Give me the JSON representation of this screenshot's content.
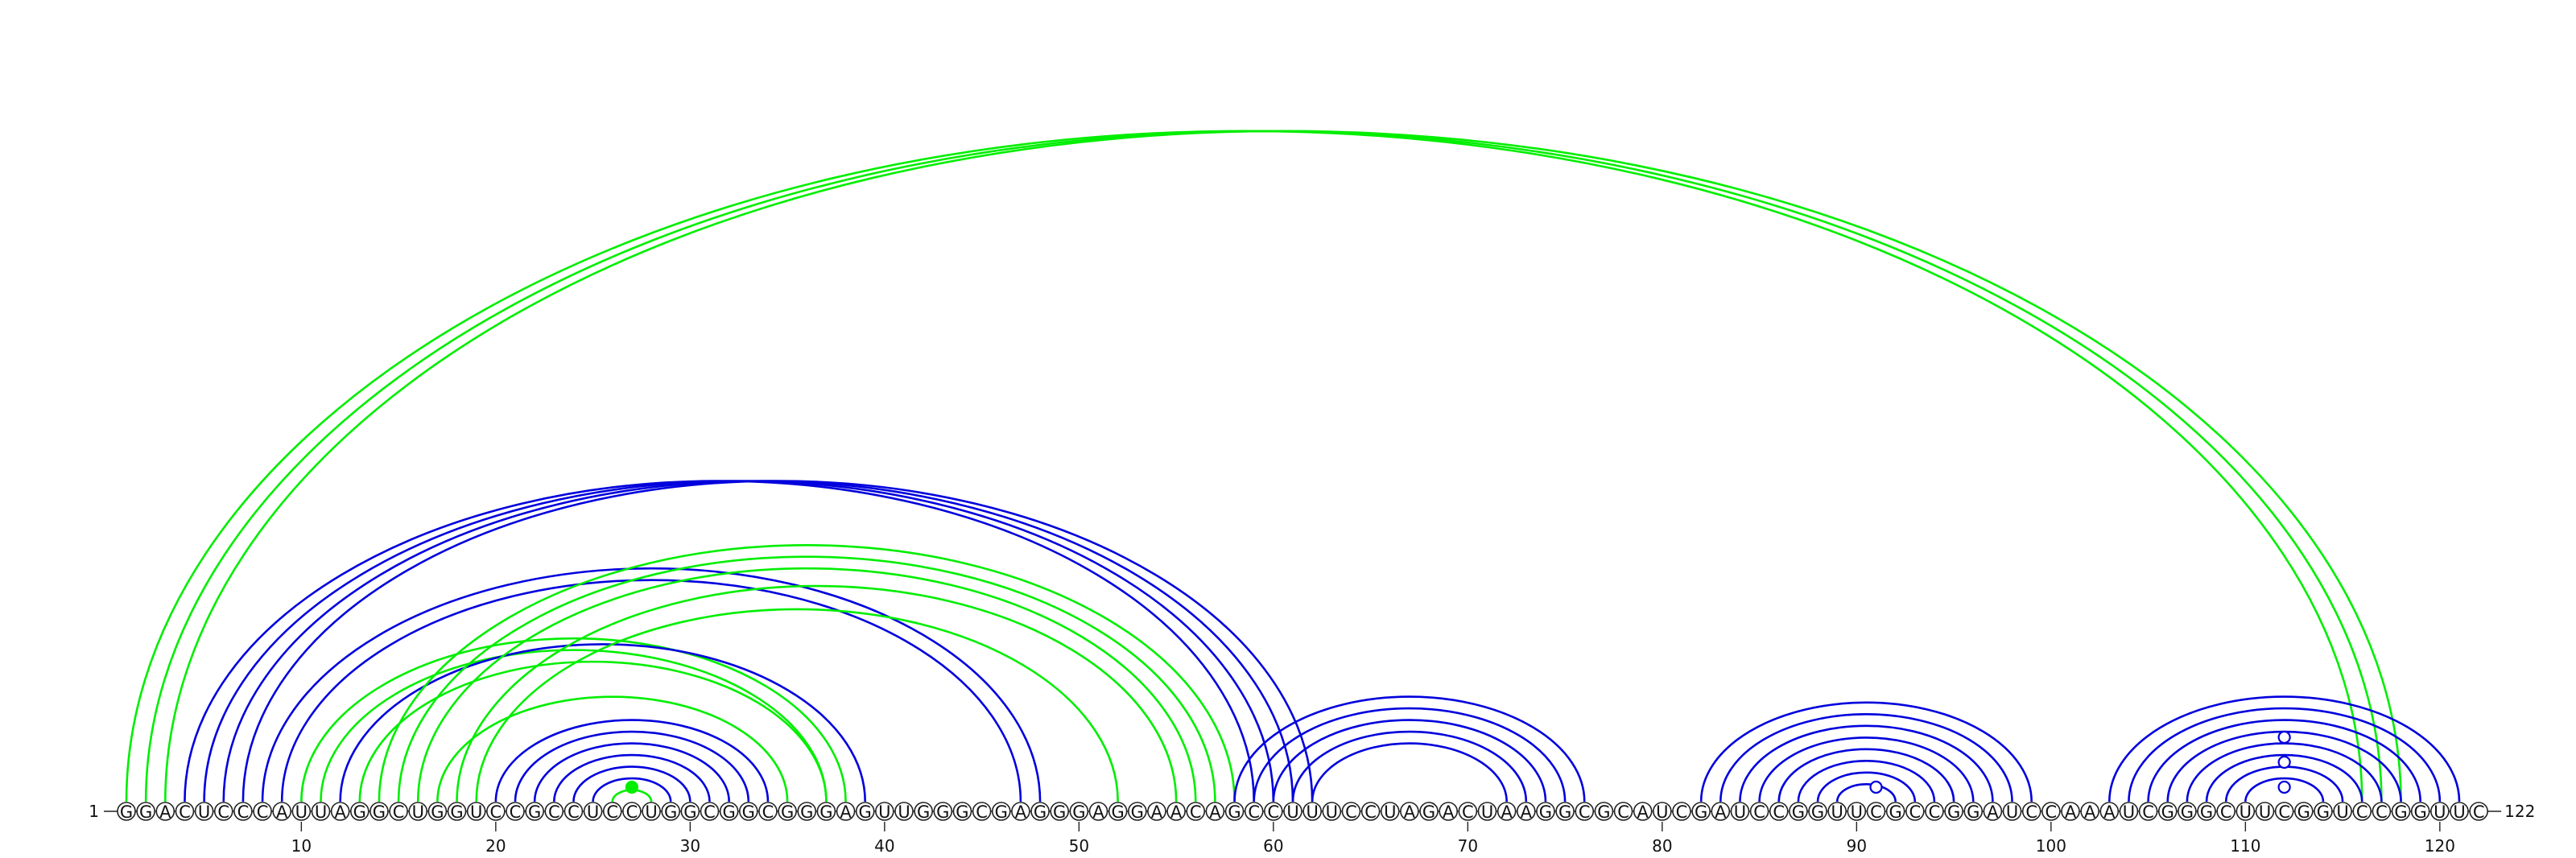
{
  "sequence": "GGACUCCCAUUAGGCUGGUCCGCCUCCUGGCGGCGGGAGUUGGGCGAGGGAGGAACAGCCUUUCCUAGACUAAGGCGCAUCGAUCCGGUUCGCCGGAUCCAAAUCGGGCUUCGGUCCGGUUC",
  "start_label": "1",
  "end_label": "122",
  "ticks": [
    "10",
    "20",
    "30",
    "40",
    "50",
    "60",
    "70",
    "80",
    "90",
    "100",
    "110",
    "120"
  ],
  "colors": {
    "green": "#00ee00",
    "blue": "#0000dd"
  },
  "pairs": [
    {
      "i": 1,
      "j": 116,
      "color": "green"
    },
    {
      "i": 2,
      "j": 117,
      "color": "green"
    },
    {
      "i": 3,
      "j": 118,
      "color": "green"
    },
    {
      "i": 4,
      "j": 59,
      "color": "blue"
    },
    {
      "i": 5,
      "j": 60,
      "color": "blue"
    },
    {
      "i": 6,
      "j": 61,
      "color": "blue"
    },
    {
      "i": 7,
      "j": 62,
      "color": "blue"
    },
    {
      "i": 8,
      "j": 48,
      "color": "blue"
    },
    {
      "i": 9,
      "j": 47,
      "color": "blue"
    },
    {
      "i": 10,
      "j": 38,
      "color": "green"
    },
    {
      "i": 11,
      "j": 37,
      "color": "green"
    },
    {
      "i": 12,
      "j": 39,
      "color": "blue"
    },
    {
      "i": 13,
      "j": 37,
      "color": "green"
    },
    {
      "i": 14,
      "j": 58,
      "color": "green"
    },
    {
      "i": 15,
      "j": 57,
      "color": "green"
    },
    {
      "i": 16,
      "j": 56,
      "color": "green"
    },
    {
      "i": 17,
      "j": 35,
      "color": "green"
    },
    {
      "i": 18,
      "j": 55,
      "color": "green"
    },
    {
      "i": 19,
      "j": 52,
      "color": "green"
    },
    {
      "i": 20,
      "j": 34,
      "color": "blue"
    },
    {
      "i": 21,
      "j": 33,
      "color": "blue"
    },
    {
      "i": 22,
      "j": 32,
      "color": "blue"
    },
    {
      "i": 23,
      "j": 31,
      "color": "blue"
    },
    {
      "i": 24,
      "j": 30,
      "color": "blue"
    },
    {
      "i": 25,
      "j": 29,
      "color": "blue"
    },
    {
      "i": 26,
      "j": 28,
      "color": "green"
    },
    {
      "i": 58,
      "j": 76,
      "color": "blue"
    },
    {
      "i": 59,
      "j": 75,
      "color": "blue"
    },
    {
      "i": 60,
      "j": 74,
      "color": "blue"
    },
    {
      "i": 61,
      "j": 73,
      "color": "blue"
    },
    {
      "i": 62,
      "j": 72,
      "color": "blue"
    },
    {
      "i": 82,
      "j": 99,
      "color": "blue"
    },
    {
      "i": 83,
      "j": 98,
      "color": "blue"
    },
    {
      "i": 84,
      "j": 97,
      "color": "blue"
    },
    {
      "i": 85,
      "j": 96,
      "color": "blue"
    },
    {
      "i": 86,
      "j": 95,
      "color": "blue"
    },
    {
      "i": 87,
      "j": 94,
      "color": "blue"
    },
    {
      "i": 88,
      "j": 93,
      "color": "blue"
    },
    {
      "i": 89,
      "j": 92,
      "color": "blue"
    },
    {
      "i": 103,
      "j": 121,
      "color": "blue"
    },
    {
      "i": 104,
      "j": 120,
      "color": "blue"
    },
    {
      "i": 105,
      "j": 119,
      "color": "blue"
    },
    {
      "i": 106,
      "j": 118,
      "color": "blue"
    },
    {
      "i": 107,
      "j": 117,
      "color": "blue"
    },
    {
      "i": 108,
      "j": 116,
      "color": "blue"
    },
    {
      "i": 109,
      "j": 115,
      "color": "blue"
    },
    {
      "i": 110,
      "j": 114,
      "color": "blue"
    }
  ],
  "markers": [
    {
      "pos": 27,
      "color": "green",
      "filled": true
    },
    {
      "pos": 91,
      "color": "blue",
      "filled": false
    },
    {
      "pos": 112,
      "color": "blue",
      "filled": false
    },
    {
      "pos": 112,
      "color": "blue",
      "filled": false
    },
    {
      "pos": 112,
      "color": "blue",
      "filled": false
    }
  ]
}
